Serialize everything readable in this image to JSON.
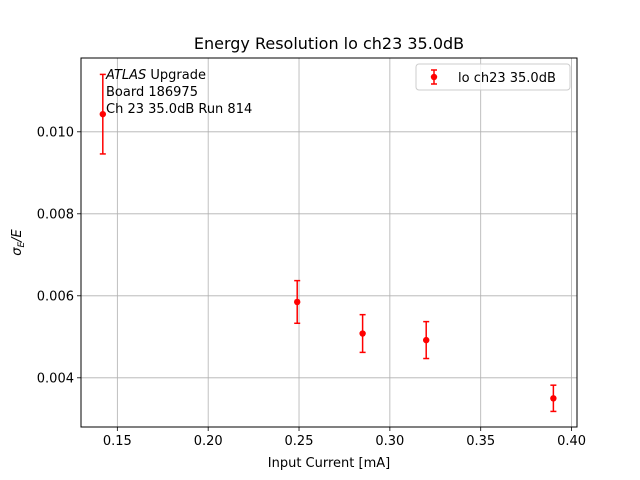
{
  "chart_data": {
    "type": "scatter",
    "title": "Energy Resolution lo ch23 35.0dB",
    "xlabel": "Input Current [mA]",
    "ylabel_main": "σ",
    "ylabel_sub": "E",
    "ylabel_tail": "/E",
    "xlim": [
      0.13,
      0.403
    ],
    "ylim": [
      0.0028,
      0.0118
    ],
    "xticks": [
      0.15,
      0.2,
      0.25,
      0.3,
      0.35,
      0.4
    ],
    "xtick_labels": [
      "0.15",
      "0.20",
      "0.25",
      "0.30",
      "0.35",
      "0.40"
    ],
    "yticks": [
      0.004,
      0.006,
      0.008,
      0.01
    ],
    "ytick_labels": [
      "0.004",
      "0.006",
      "0.008",
      "0.010"
    ],
    "grid": true,
    "legend_position": "top-right",
    "series": [
      {
        "name": "lo ch23 35.0dB",
        "color": "#ff0000",
        "x": [
          0.142,
          0.249,
          0.285,
          0.32,
          0.39
        ],
        "y": [
          0.01043,
          0.00585,
          0.00508,
          0.00492,
          0.0035
        ],
        "yerr": [
          0.00097,
          0.00052,
          0.00046,
          0.00045,
          0.00032
        ]
      }
    ],
    "annotation": {
      "atlas": "ATLAS",
      "upgrade": " Upgrade",
      "board": "Board 186975",
      "channel_run": "Ch 23 35.0dB  Run 814"
    }
  }
}
